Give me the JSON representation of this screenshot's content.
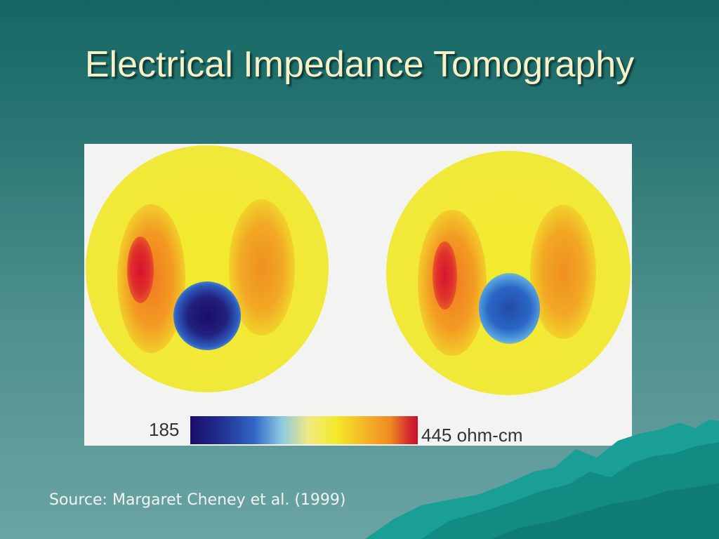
{
  "slide": {
    "title": "Electrical Impedance Tomography",
    "source": "Source: Margaret Cheney et al. (1999)"
  },
  "figure": {
    "colorbar": {
      "min_label": "185",
      "max_label": "445 ohm-cm",
      "colors": [
        "#1a0e6a",
        "#2f66c6",
        "#8cc8e2",
        "#f3e92a",
        "#ef8a22",
        "#c9102c"
      ]
    }
  },
  "colors": {
    "title_text": "#f6f1c9",
    "background_top": "#146664",
    "background_bottom": "#6aa4a3",
    "mountain": "#14988f"
  }
}
